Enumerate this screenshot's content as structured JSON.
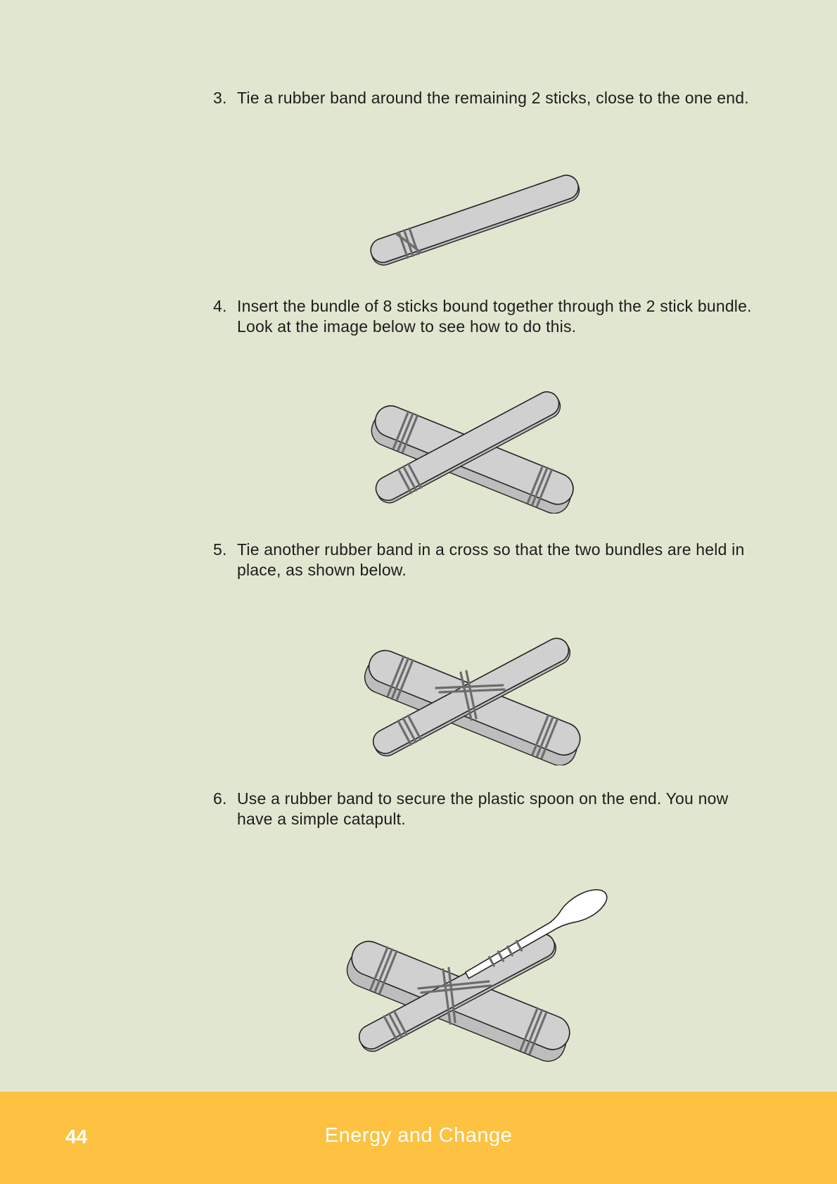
{
  "steps": [
    {
      "number": "3.",
      "text": "Tie a rubber band around the remaining 2 sticks, close to the one end."
    },
    {
      "number": "4.",
      "text": "Insert the bundle of 8 sticks bound together through the 2 stick bundle. Look at the image below to see how to do this."
    },
    {
      "number": "5.",
      "text": "Tie another rubber band in a cross so that the two bundles are held in place, as shown below."
    },
    {
      "number": "6.",
      "text": "Use a rubber band to secure the plastic spoon on the end. You now have a simple catapult."
    }
  ],
  "footer": {
    "page_number": "44",
    "title": "Energy and Change"
  }
}
